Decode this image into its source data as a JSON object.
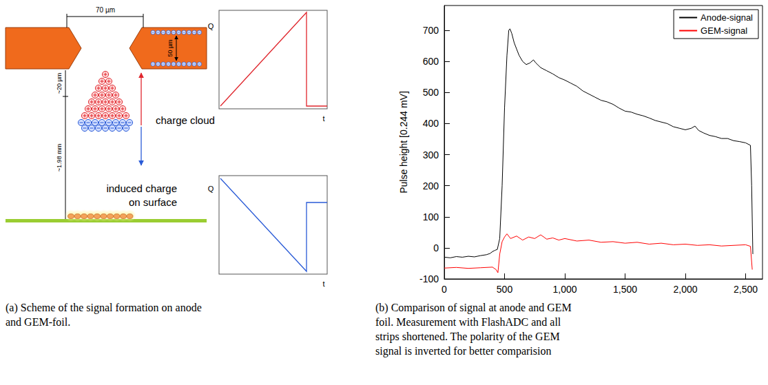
{
  "diagram": {
    "hole_width": "70 µm",
    "foil_thickness": "50 µm",
    "gap_small": "~20 µm",
    "gap_large": "~1.98 mm",
    "cloud_label": "charge cloud",
    "surface_label": [
      "induced charge",
      "on surface"
    ],
    "top_plot": {
      "y_label": "Q",
      "x_label": "t"
    },
    "bottom_plot": {
      "y_label": "Q",
      "x_label": "t"
    },
    "caption": "(a) Scheme of the signal formation on anode and GEM-foil."
  },
  "chart_data": {
    "type": "line",
    "y_label": "Pulse height [0.244 mV]",
    "caption": "(b) Comparison of signal at anode and GEM foil. Measurement with FlashADC and all strips shortened. The polarity of the GEM signal is inverted for better comparision",
    "xlim": [
      0,
      2640
    ],
    "xticks": [
      0,
      500,
      1000,
      1500,
      2000,
      2500
    ],
    "ylim": [
      -100,
      780
    ],
    "yticks": [
      -100,
      0,
      100,
      200,
      300,
      400,
      500,
      600,
      700
    ],
    "grid": false,
    "legend": "upper right",
    "marker": "none",
    "series": [
      {
        "name": "Anode-signal",
        "color": "#000000",
        "x": [
          0,
          50,
          100,
          150,
          200,
          250,
          300,
          350,
          380,
          400,
          420,
          440,
          460,
          480,
          500,
          520,
          535,
          545,
          560,
          580,
          600,
          620,
          650,
          680,
          710,
          740,
          760,
          800,
          850,
          900,
          950,
          1000,
          1050,
          1100,
          1150,
          1200,
          1250,
          1300,
          1350,
          1400,
          1450,
          1500,
          1550,
          1600,
          1650,
          1700,
          1750,
          1800,
          1850,
          1900,
          1950,
          2000,
          2050,
          2080,
          2110,
          2150,
          2200,
          2250,
          2300,
          2350,
          2400,
          2450,
          2500,
          2540,
          2550,
          2560
        ],
        "values": [
          -30,
          -32,
          -28,
          -30,
          -27,
          -29,
          -25,
          -22,
          -18,
          -12,
          -8,
          -5,
          30,
          200,
          450,
          620,
          700,
          705,
          690,
          660,
          640,
          620,
          600,
          590,
          595,
          605,
          595,
          580,
          570,
          560,
          548,
          540,
          530,
          520,
          505,
          495,
          485,
          475,
          470,
          462,
          450,
          440,
          437,
          430,
          425,
          418,
          410,
          405,
          400,
          390,
          385,
          380,
          385,
          392,
          378,
          370,
          362,
          358,
          352,
          352,
          345,
          342,
          338,
          330,
          200,
          -20
        ]
      },
      {
        "name": "GEM-signal",
        "color": "#ff0000",
        "x": [
          0,
          100,
          200,
          300,
          400,
          430,
          445,
          460,
          480,
          500,
          520,
          550,
          600,
          650,
          700,
          750,
          800,
          850,
          900,
          950,
          1000,
          1100,
          1200,
          1300,
          1400,
          1500,
          1600,
          1700,
          1800,
          1900,
          2000,
          2100,
          2200,
          2300,
          2400,
          2500,
          2540,
          2555
        ],
        "values": [
          -65,
          -63,
          -66,
          -64,
          -62,
          -70,
          -80,
          -20,
          20,
          35,
          45,
          30,
          38,
          25,
          35,
          30,
          42,
          28,
          32,
          25,
          30,
          22,
          25,
          18,
          20,
          15,
          18,
          12,
          15,
          10,
          12,
          8,
          10,
          6,
          8,
          10,
          5,
          -70
        ]
      }
    ]
  }
}
